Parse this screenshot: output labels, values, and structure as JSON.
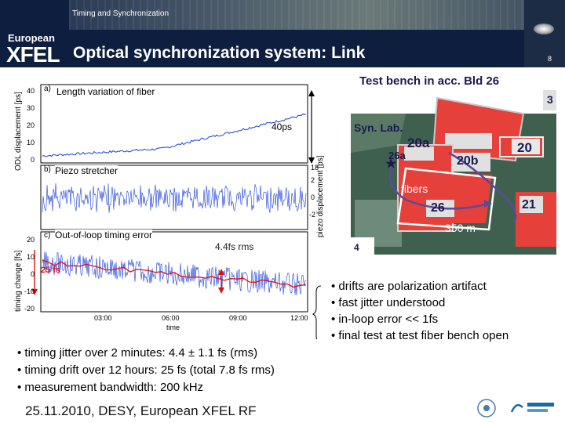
{
  "header": {
    "section": "Timing and Synchronization",
    "title": "Optical synchronization system: Link",
    "logo_top": "European",
    "logo_bottom": "XFEL",
    "page_number": "8"
  },
  "plot": {
    "panel_a_letter": "a)",
    "panel_a_title": "Length variation of fiber",
    "panel_a_ylabel": "ODL displacement [ps]",
    "panel_a_annotation": "40ps",
    "panel_b_letter": "b)",
    "panel_b_title": "Piezo stretcher",
    "panel_b_ylabel": "piezo displacement [ps]",
    "panel_c_letter": "c)",
    "panel_c_title": "Out-of-loop timing error",
    "panel_c_ylabel": "timing change [fs]",
    "panel_c_annotation": "4.4fs rms",
    "panel_c_drift": "25 fs",
    "xlabel": "time",
    "a_ticks": [
      "40",
      "30",
      "20",
      "10",
      "0"
    ],
    "b_ticks": [
      "18",
      "2",
      "0",
      "-2"
    ],
    "c_ticks": [
      "20",
      "10",
      "0",
      "-10",
      "-20"
    ],
    "x_ticks": [
      "03:00",
      "06:00",
      "09:00",
      "12:00"
    ]
  },
  "map": {
    "title": "Test bench in acc. Bld 26",
    "syn_lab": "Syn. Lab.",
    "fibers": "fibers",
    "distance": "350 m",
    "buildings": [
      "20a",
      "20",
      "26a",
      "20b",
      "26",
      "21",
      "4",
      "3"
    ],
    "marker": "★"
  },
  "bullets_right": [
    "• drifts are polarization artifact",
    "• fast jitter understood",
    "• in-loop error << 1fs",
    "• final test at test fiber bench open"
  ],
  "bullets_left": [
    "• timing jitter over 2 minutes: 4.4 ± 1.1 fs  (rms)",
    "• timing drift over 12 hours: 25 fs (total 7.8 fs rms)",
    "• measurement bandwidth: 200 kHz"
  ],
  "footer": "25.11.2010, DESY, European XFEL RF",
  "colors": {
    "header_bg": "#0d1e3f",
    "trace_blue": "#1a3fd8",
    "drift_red": "#e01010",
    "building_red": "#e6403a",
    "map_green": "#3c5e52",
    "fiber_purple": "#5a4a9a"
  }
}
